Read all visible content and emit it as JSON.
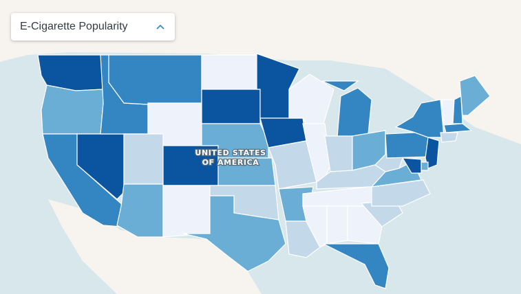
{
  "dropdown": {
    "selected": "E-Cigarette Popularity",
    "icon": "chevron-up-icon"
  },
  "map": {
    "country_label_line1": "UNITED STATES",
    "country_label_line2": "OF AMERICA"
  },
  "palette": {
    "level1": "#eef2fb",
    "level2": "#c3d9ea",
    "level3": "#6aaed6",
    "level4": "#3486c2",
    "level5": "#0b549f",
    "water": "#d7e7ec",
    "land": "#f7f4ef"
  },
  "states": [
    {
      "name": "Washington",
      "level": 5
    },
    {
      "name": "Oregon",
      "level": 3
    },
    {
      "name": "California",
      "level": 4
    },
    {
      "name": "Nevada",
      "level": 5
    },
    {
      "name": "Idaho",
      "level": 4
    },
    {
      "name": "Montana",
      "level": 4
    },
    {
      "name": "Wyoming",
      "level": 1
    },
    {
      "name": "Utah",
      "level": 2
    },
    {
      "name": "Arizona",
      "level": 3
    },
    {
      "name": "Colorado",
      "level": 5
    },
    {
      "name": "New Mexico",
      "level": 1
    },
    {
      "name": "North Dakota",
      "level": 1
    },
    {
      "name": "South Dakota",
      "level": 5
    },
    {
      "name": "Nebraska",
      "level": 3
    },
    {
      "name": "Kansas",
      "level": 3
    },
    {
      "name": "Oklahoma",
      "level": 2
    },
    {
      "name": "Texas",
      "level": 3
    },
    {
      "name": "Minnesota",
      "level": 5
    },
    {
      "name": "Iowa",
      "level": 5
    },
    {
      "name": "Missouri",
      "level": 2
    },
    {
      "name": "Arkansas",
      "level": 3
    },
    {
      "name": "Louisiana",
      "level": 2
    },
    {
      "name": "Wisconsin",
      "level": 1
    },
    {
      "name": "Illinois",
      "level": 1
    },
    {
      "name": "Michigan",
      "level": 4
    },
    {
      "name": "Indiana",
      "level": 2
    },
    {
      "name": "Ohio",
      "level": 3
    },
    {
      "name": "Kentucky",
      "level": 2
    },
    {
      "name": "Tennessee",
      "level": 1
    },
    {
      "name": "Mississippi",
      "level": 1
    },
    {
      "name": "Alabama",
      "level": 1
    },
    {
      "name": "Georgia",
      "level": 1
    },
    {
      "name": "Florida",
      "level": 4
    },
    {
      "name": "South Carolina",
      "level": 2
    },
    {
      "name": "North Carolina",
      "level": 2
    },
    {
      "name": "Virginia",
      "level": 3
    },
    {
      "name": "West Virginia",
      "level": 2
    },
    {
      "name": "Pennsylvania",
      "level": 4
    },
    {
      "name": "New York",
      "level": 4
    },
    {
      "name": "Vermont",
      "level": 1
    },
    {
      "name": "New Hampshire",
      "level": 4
    },
    {
      "name": "Maine",
      "level": 3
    },
    {
      "name": "Massachusetts",
      "level": 4
    },
    {
      "name": "Connecticut",
      "level": 2
    },
    {
      "name": "New Jersey",
      "level": 5
    },
    {
      "name": "Delaware",
      "level": 3
    },
    {
      "name": "Maryland",
      "level": 5
    }
  ]
}
